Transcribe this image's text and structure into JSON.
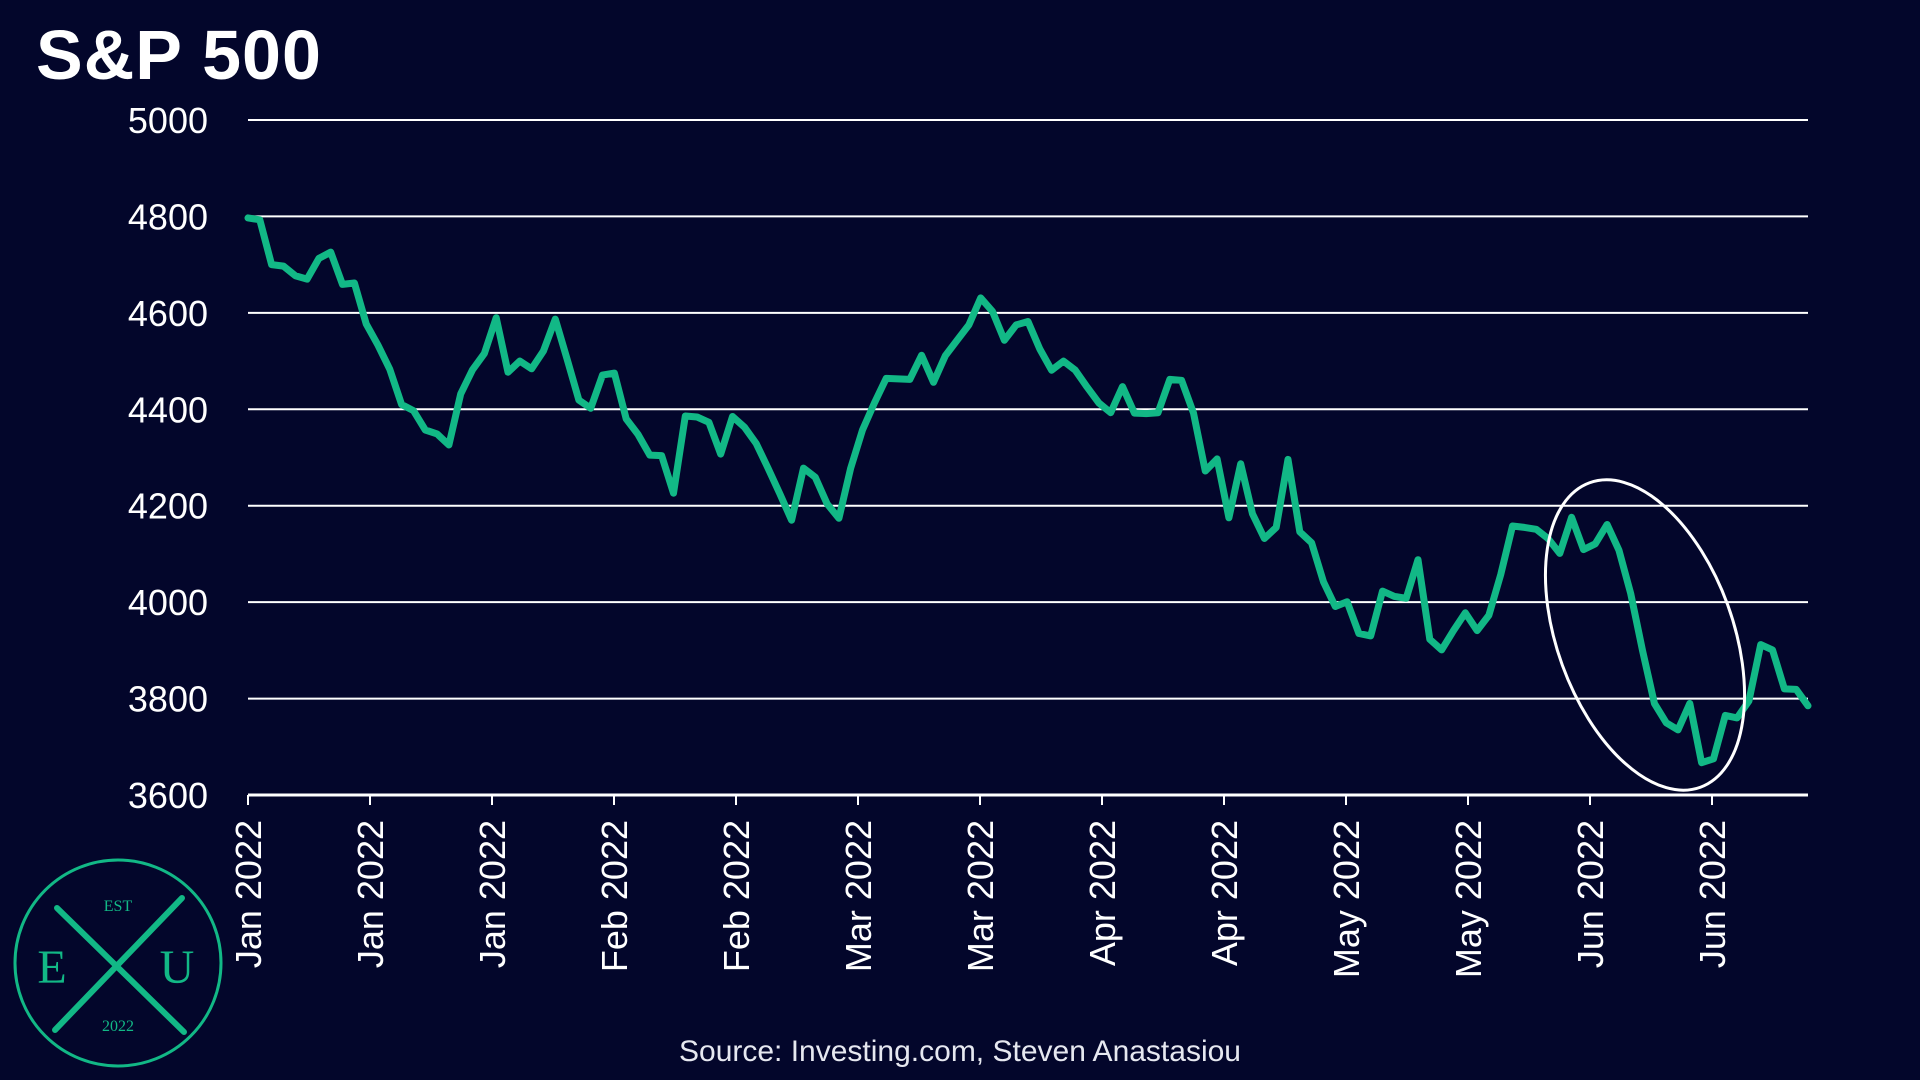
{
  "page": {
    "title": "S&P 500",
    "source": "Source: Investing.com, Steven Anastasiou"
  },
  "colors": {
    "background": "#03062b",
    "line": "#12b886",
    "grid": "#ffffff",
    "text": "#ffffff"
  },
  "logo": {
    "top_text": "EST",
    "left_letter": "E",
    "right_letter": "U",
    "bottom_text": "2022"
  },
  "chart_data": {
    "type": "line",
    "title": "S&P 500",
    "xlabel": "",
    "ylabel": "",
    "ylim": [
      3600,
      5000
    ],
    "yticks": [
      3600,
      3800,
      4000,
      4200,
      4400,
      4600,
      4800,
      5000
    ],
    "grid": true,
    "x_tick_labels": [
      "Jan 2022",
      "Jan 2022",
      "Jan 2022",
      "Feb 2022",
      "Feb 2022",
      "Mar 2022",
      "Mar 2022",
      "Apr 2022",
      "Apr 2022",
      "May 2022",
      "May 2022",
      "Jun 2022",
      "Jun 2022"
    ],
    "series": [
      {
        "values": [
          4797,
          4793,
          4700,
          4697,
          4677,
          4670,
          4713,
          4726,
          4659,
          4662,
          4577,
          4533,
          4483,
          4410,
          4397,
          4357,
          4349,
          4326,
          4432,
          4482,
          4516,
          4590,
          4477,
          4500,
          4484,
          4521,
          4587,
          4504,
          4419,
          4402,
          4471,
          4475,
          4380,
          4348,
          4305,
          4304,
          4226,
          4386,
          4384,
          4373,
          4307,
          4385,
          4363,
          4329,
          4278,
          4225,
          4170,
          4278,
          4259,
          4204,
          4174,
          4278,
          4357,
          4413,
          4464,
          4463,
          4462,
          4512,
          4456,
          4511,
          4543,
          4575,
          4631,
          4603,
          4543,
          4575,
          4582,
          4525,
          4481,
          4500,
          4481,
          4446,
          4413,
          4393,
          4447,
          4392,
          4391,
          4393,
          4462,
          4460,
          4392,
          4272,
          4297,
          4175,
          4287,
          4183,
          4132,
          4155,
          4296,
          4146,
          4123,
          4042,
          3991,
          4001,
          3935,
          3930,
          4023,
          4012,
          4008,
          4088,
          3923,
          3901,
          3941,
          3978,
          3941,
          3973,
          4057,
          4158,
          4155,
          4151,
          4132,
          4101,
          4176,
          4109,
          4121,
          4161,
          4108,
          4018,
          3900,
          3790,
          3750,
          3735,
          3790,
          3667,
          3675,
          3765,
          3760,
          3795,
          3912,
          3901,
          3820,
          3819,
          3785
        ]
      }
    ]
  }
}
